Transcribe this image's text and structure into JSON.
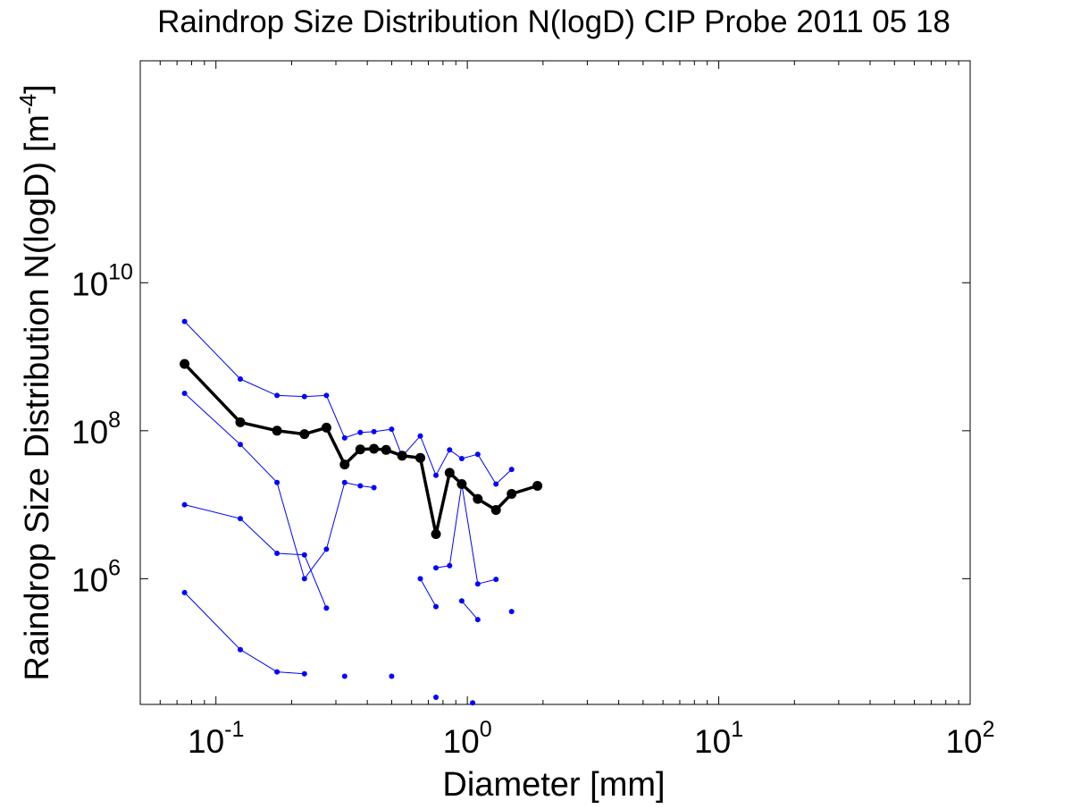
{
  "chart_data": {
    "type": "line",
    "title": "Raindrop Size Distribution N(logD) CIP Probe 2011 05 18",
    "xlabel": "Diameter [mm]",
    "ylabel": {
      "text": "Raindrop Size Distribution N(logD) [m",
      "sup": "-4",
      "tail": "]"
    },
    "xscale": "log",
    "yscale": "log",
    "xlim": [
      0.05,
      100
    ],
    "ylim": [
      20000,
      10000000000000
    ],
    "grid": false,
    "legend": "none",
    "x_ticks": [
      {
        "value": 0.1,
        "base": "10",
        "exp": "-1"
      },
      {
        "value": 1,
        "base": "10",
        "exp": "0"
      },
      {
        "value": 10,
        "base": "10",
        "exp": "1"
      },
      {
        "value": 100,
        "base": "10",
        "exp": "2"
      }
    ],
    "y_ticks": [
      {
        "value": 1000000,
        "base": "10",
        "exp": "6"
      },
      {
        "value": 100000000,
        "base": "10",
        "exp": "8"
      },
      {
        "value": 10000000000,
        "base": "10",
        "exp": "10"
      }
    ],
    "colors": {
      "mean": "#000000",
      "samples": "#0000ff",
      "axes": "#000000"
    },
    "series": [
      {
        "role": "mean",
        "points": [
          [
            0.075,
            800000000
          ],
          [
            0.125,
            130000000
          ],
          [
            0.175,
            100000000
          ],
          [
            0.225,
            90000000
          ],
          [
            0.275,
            110000000
          ],
          [
            0.325,
            35000000
          ],
          [
            0.375,
            56000000
          ],
          [
            0.425,
            57000000
          ],
          [
            0.475,
            55000000
          ],
          [
            0.55,
            46000000
          ],
          [
            0.65,
            43000000
          ],
          [
            0.75,
            4000000
          ],
          [
            0.85,
            27000000
          ],
          [
            0.95,
            19000000
          ],
          [
            1.1,
            12000000
          ],
          [
            1.3,
            8500000
          ],
          [
            1.5,
            14000000
          ],
          [
            1.9,
            18000000
          ]
        ]
      },
      {
        "role": "sample",
        "points": [
          [
            0.075,
            3000000000
          ],
          [
            0.125,
            500000000
          ],
          [
            0.175,
            300000000
          ],
          [
            0.225,
            290000000
          ],
          [
            0.275,
            300000000
          ],
          [
            0.325,
            80000000
          ],
          [
            0.375,
            95000000
          ],
          [
            0.425,
            97000000
          ],
          [
            0.5,
            105000000
          ],
          [
            0.55,
            45000000
          ],
          [
            0.65,
            85000000
          ],
          [
            0.75,
            25000000
          ],
          [
            0.85,
            55000000
          ],
          [
            0.95,
            42000000
          ],
          [
            1.1,
            48000000
          ],
          [
            1.3,
            19000000
          ],
          [
            1.5,
            30000000
          ]
        ]
      },
      {
        "role": "sample",
        "points": [
          [
            0.075,
            320000000
          ],
          [
            0.125,
            65000000
          ],
          [
            0.175,
            20000000
          ],
          [
            0.225,
            1000000
          ],
          [
            0.275,
            2500000
          ],
          [
            0.325,
            20000000
          ],
          [
            0.375,
            18000000
          ],
          [
            0.425,
            17000000
          ]
        ]
      },
      {
        "role": "sample",
        "points": [
          [
            0.075,
            10000000
          ],
          [
            0.125,
            6500000
          ],
          [
            0.175,
            2200000
          ],
          [
            0.225,
            2100000
          ],
          [
            0.275,
            400000
          ]
        ]
      },
      {
        "role": "sample",
        "points": [
          [
            0.075,
            650000
          ],
          [
            0.125,
            110000
          ],
          [
            0.175,
            55000
          ],
          [
            0.225,
            52000
          ]
        ]
      },
      {
        "role": "sample",
        "points": [
          [
            0.65,
            1000000
          ],
          [
            0.75,
            420000
          ]
        ]
      },
      {
        "role": "sample",
        "points": [
          [
            0.75,
            1400000
          ],
          [
            0.85,
            1500000
          ],
          [
            0.95,
            19000000
          ],
          [
            1.1,
            850000
          ],
          [
            1.3,
            980000
          ]
        ]
      },
      {
        "role": "sample",
        "points": [
          [
            0.95,
            500000
          ],
          [
            1.1,
            280000
          ]
        ]
      },
      {
        "role": "sample",
        "points": [
          [
            0.325,
            48000
          ]
        ]
      },
      {
        "role": "sample",
        "points": [
          [
            0.5,
            48000
          ]
        ]
      },
      {
        "role": "sample",
        "points": [
          [
            0.75,
            25000
          ]
        ]
      },
      {
        "role": "sample",
        "points": [
          [
            1.05,
            21000
          ]
        ]
      },
      {
        "role": "sample",
        "points": [
          [
            1.5,
            360000
          ]
        ]
      }
    ]
  }
}
